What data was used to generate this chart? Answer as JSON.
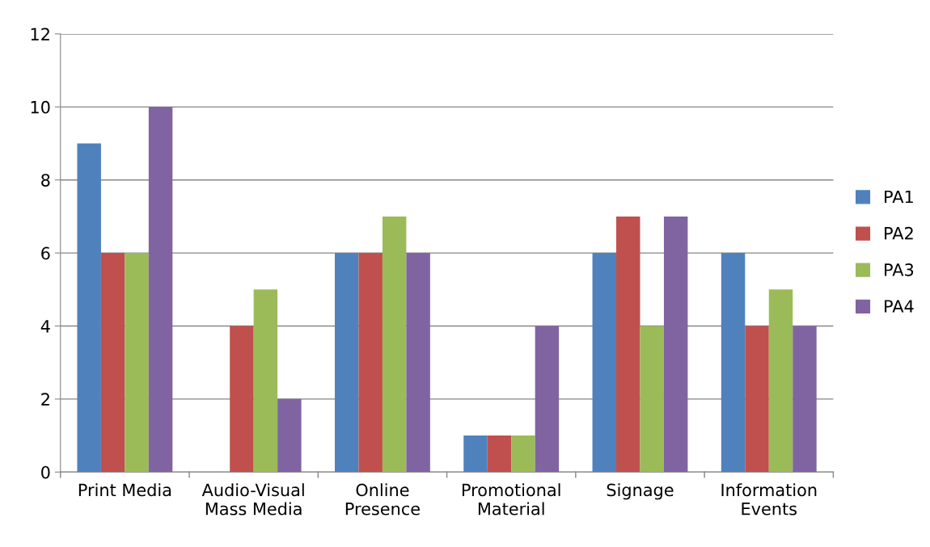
{
  "chart_data": {
    "type": "bar",
    "categories": [
      "Print Media",
      "Audio-Visual\nMass Media",
      "Online\nPresence",
      "Promotional\nMaterial",
      "Signage",
      "Information\nEvents"
    ],
    "series": [
      {
        "name": "PA1",
        "color": "#4f81bd",
        "values": [
          9,
          0,
          6,
          1,
          6,
          6
        ]
      },
      {
        "name": "PA2",
        "color": "#c0504d",
        "values": [
          6,
          4,
          6,
          1,
          7,
          4
        ]
      },
      {
        "name": "PA3",
        "color": "#9bbb59",
        "values": [
          6,
          5,
          7,
          1,
          4,
          5
        ]
      },
      {
        "name": "PA4",
        "color": "#8064a2",
        "values": [
          10,
          2,
          6,
          4,
          7,
          4
        ]
      }
    ],
    "ylim": [
      0,
      12
    ],
    "yticks": [
      0,
      2,
      4,
      6,
      8,
      10,
      12
    ],
    "grid": "y",
    "legend": "right"
  }
}
